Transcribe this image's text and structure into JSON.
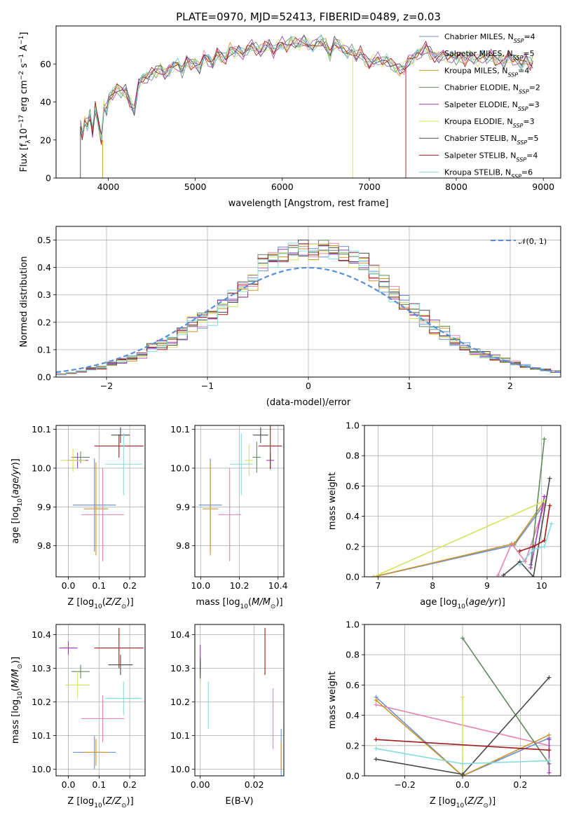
{
  "colors": [
    "#6b8fd6",
    "#e685b0",
    "#c9962a",
    "#5f8a5e",
    "#9b3cb5",
    "#d6e261",
    "#4a4a4a",
    "#a11d1d",
    "#86dcdc"
  ],
  "chart_data": [
    {
      "id": "spectrum",
      "type": "line",
      "title": "PLATE=0970, MJD=52413, FIBERID=0489, z=0.03",
      "xlabel": "wavelength [Angstrom, rest frame]",
      "ylabel": "Flux [f_λ10^-17 erg cm^-2 s^-1 A^-1]",
      "xlim": [
        3400,
        9200
      ],
      "ylim": [
        0,
        80
      ],
      "xticks": [
        4000,
        5000,
        6000,
        7000,
        8000,
        9000
      ],
      "yticks": [
        0,
        20,
        40,
        60
      ],
      "grid": false,
      "legend_position": "top-right",
      "legend": [
        {
          "label": "Chabrier MILES, N",
          "sub": "SSP",
          "tail": "=4"
        },
        {
          "label": "Salpeter MILES, N",
          "sub": "SSP",
          "tail": "=5"
        },
        {
          "label": "Kroupa MILES, N",
          "sub": "SSP",
          "tail": "=4"
        },
        {
          "label": "Chabrier ELODIE, N",
          "sub": "SSP",
          "tail": "=2"
        },
        {
          "label": "Salpeter ELODIE, N",
          "sub": "SSP",
          "tail": "=3"
        },
        {
          "label": "Kroupa ELODIE, N",
          "sub": "SSP",
          "tail": "=3"
        },
        {
          "label": "Chabrier STELIB, N",
          "sub": "SSP",
          "tail": "=5"
        },
        {
          "label": "Salpeter STELIB, N",
          "sub": "SSP",
          "tail": "=4"
        },
        {
          "label": "Kroupa STELIB, N",
          "sub": "SSP",
          "tail": "=6"
        }
      ],
      "x": [
        3680,
        3700,
        3730,
        3760,
        3790,
        3820,
        3850,
        3880,
        3920,
        3950,
        3980,
        4010,
        4050,
        4100,
        4150,
        4200,
        4250,
        4300,
        4350,
        4400,
        4450,
        4500,
        4550,
        4600,
        4650,
        4700,
        4750,
        4800,
        4850,
        4900,
        4950,
        5000,
        5050,
        5100,
        5150,
        5200,
        5250,
        5300,
        5350,
        5400,
        5450,
        5500,
        5550,
        5600,
        5650,
        5700,
        5750,
        5800,
        5850,
        5900,
        5950,
        6000,
        6050,
        6100,
        6150,
        6200,
        6250,
        6300,
        6350,
        6400,
        6450,
        6500,
        6550,
        6600,
        6650,
        6700,
        6750,
        6800,
        6850,
        6900,
        6950,
        7000,
        7050,
        7100,
        7150,
        7200,
        7250,
        7300,
        7350,
        7400,
        7450,
        7500,
        7550,
        7600,
        7650,
        7700,
        7750,
        7800,
        7850,
        7900,
        7950,
        8000,
        8050,
        8100,
        8150,
        8200,
        8250,
        8300,
        8350,
        8400,
        8450,
        8500,
        8550,
        8600,
        8650,
        8700,
        8750,
        8800,
        8850,
        8880
      ],
      "y": [
        27,
        22,
        30,
        28,
        33,
        24,
        37,
        30,
        20,
        38,
        36,
        42,
        44,
        47,
        45,
        46,
        40,
        36,
        50,
        52,
        53,
        55,
        56,
        58,
        55,
        57,
        59,
        60,
        56,
        62,
        60,
        61,
        58,
        64,
        62,
        60,
        66,
        64,
        63,
        68,
        66,
        67,
        65,
        68,
        70,
        68,
        67,
        69,
        70,
        66,
        70,
        71,
        69,
        72,
        71,
        70,
        72,
        70,
        69,
        71,
        72,
        70,
        64,
        71,
        70,
        68,
        66,
        67,
        64,
        66,
        62,
        60,
        62,
        63,
        61,
        62,
        60,
        58,
        57,
        58,
        62,
        63,
        65,
        66,
        69,
        66,
        64,
        64,
        65,
        63,
        64,
        63,
        64,
        62,
        65,
        63,
        62,
        64,
        63,
        65,
        62,
        63,
        61,
        64,
        62,
        62,
        60,
        63,
        60,
        61
      ],
      "dropouts": [
        [
          3680,
          0
        ],
        [
          3935,
          0
        ],
        [
          6810,
          0
        ],
        [
          7420,
          0
        ]
      ]
    },
    {
      "id": "residuals",
      "type": "line",
      "xlabel": "(data-model)/error",
      "ylabel": "Normed distribution",
      "xlim": [
        -2.5,
        2.5
      ],
      "ylim": [
        0,
        0.55
      ],
      "xticks": [
        -2,
        -1,
        0,
        1,
        2
      ],
      "yticks": [
        0.0,
        0.1,
        0.2,
        0.3,
        0.4,
        0.5
      ],
      "grid": true,
      "legend_position": "top-right",
      "reference_label": "𝒩(0, 1)",
      "bin_edges": [
        -2.5,
        -2.4,
        -2.3,
        -2.2,
        -2.1,
        -2.0,
        -1.9,
        -1.8,
        -1.7,
        -1.6,
        -1.5,
        -1.4,
        -1.3,
        -1.2,
        -1.1,
        -1.0,
        -0.9,
        -0.8,
        -0.7,
        -0.6,
        -0.5,
        -0.4,
        -0.3,
        -0.2,
        -0.1,
        0.0,
        0.1,
        0.2,
        0.3,
        0.4,
        0.5,
        0.6,
        0.7,
        0.8,
        0.9,
        1.0,
        1.1,
        1.2,
        1.3,
        1.4,
        1.5,
        1.6,
        1.7,
        1.8,
        1.9,
        2.0,
        2.1,
        2.2,
        2.3,
        2.4,
        2.5
      ],
      "hist_base": [
        0.01,
        0.015,
        0.02,
        0.03,
        0.035,
        0.05,
        0.06,
        0.07,
        0.08,
        0.11,
        0.12,
        0.13,
        0.16,
        0.2,
        0.21,
        0.22,
        0.26,
        0.29,
        0.32,
        0.35,
        0.42,
        0.43,
        0.45,
        0.46,
        0.47,
        0.46,
        0.47,
        0.46,
        0.45,
        0.43,
        0.42,
        0.38,
        0.34,
        0.3,
        0.27,
        0.24,
        0.21,
        0.18,
        0.16,
        0.13,
        0.11,
        0.09,
        0.08,
        0.07,
        0.06,
        0.05,
        0.04,
        0.03,
        0.025,
        0.02
      ]
    },
    {
      "id": "age_vs_Z",
      "type": "scatter",
      "xlabel": "Z [log10(Z/Z⊙)]",
      "ylabel": "age [log10(age/yr)]",
      "xlim": [
        -0.04,
        0.25
      ],
      "ylim": [
        9.72,
        10.11
      ],
      "xticks": [
        0.0,
        0.1,
        0.2
      ],
      "yticks": [
        9.8,
        9.9,
        10.0,
        10.1
      ],
      "grid": true,
      "points": [
        {
          "x": 0.085,
          "y": 9.905,
          "xerr": 0.07,
          "yerr": 0.12
        },
        {
          "x": 0.112,
          "y": 9.88,
          "xerr": 0.07,
          "yerr": 0.12
        },
        {
          "x": 0.09,
          "y": 9.895,
          "xerr": 0.04,
          "yerr": 0.12
        },
        {
          "x": 0.04,
          "y": 10.028,
          "xerr": 0.03,
          "yerr": 0.015
        },
        {
          "x": 0.03,
          "y": 10.02,
          "xerr": 0.035,
          "yerr": 0.02
        },
        {
          "x": 0.015,
          "y": 10.02,
          "xerr": 0.04,
          "yerr": 0.03
        },
        {
          "x": 0.17,
          "y": 10.085,
          "xerr": 0.03,
          "yerr": 0.02
        },
        {
          "x": 0.165,
          "y": 10.057,
          "xerr": 0.08,
          "yerr": 0.03
        },
        {
          "x": 0.18,
          "y": 10.01,
          "xerr": 0.06,
          "yerr": 0.08
        }
      ]
    },
    {
      "id": "age_vs_mass",
      "type": "scatter",
      "xlabel": "mass [log10(M/M⊙)]",
      "ylabel": "",
      "xlim": [
        9.97,
        10.43
      ],
      "ylim": [
        9.72,
        10.11
      ],
      "xticks": [
        10.0,
        10.2,
        10.4
      ],
      "yticks": [
        9.8,
        9.9,
        10.0,
        10.1
      ],
      "grid": true,
      "points": [
        {
          "x": 10.05,
          "y": 9.905,
          "xerr": 0.06,
          "yerr": 0.12
        },
        {
          "x": 10.15,
          "y": 9.88,
          "xerr": 0.06,
          "yerr": 0.12
        },
        {
          "x": 10.05,
          "y": 9.895,
          "xerr": 0.04,
          "yerr": 0.12
        },
        {
          "x": 10.29,
          "y": 10.028,
          "xerr": 0.02,
          "yerr": 0.04
        },
        {
          "x": 10.36,
          "y": 10.02,
          "xerr": 0.02,
          "yerr": 0.02
        },
        {
          "x": 10.25,
          "y": 10.02,
          "xerr": 0.02,
          "yerr": 0.04
        },
        {
          "x": 10.31,
          "y": 10.085,
          "xerr": 0.04,
          "yerr": 0.02
        },
        {
          "x": 10.36,
          "y": 10.057,
          "xerr": 0.06,
          "yerr": 0.06
        },
        {
          "x": 10.21,
          "y": 10.01,
          "xerr": 0.06,
          "yerr": 0.08
        }
      ]
    },
    {
      "id": "weight_vs_age",
      "type": "line",
      "xlabel": "age [log10(age/yr)]",
      "ylabel": "mass weight",
      "xlim": [
        6.75,
        10.35
      ],
      "ylim": [
        0,
        1
      ],
      "xticks": [
        7,
        8,
        9,
        10
      ],
      "yticks": [
        0.0,
        0.2,
        0.4,
        0.6,
        0.8,
        1.0
      ],
      "grid": true,
      "series": [
        {
          "x": [
            6.92,
            9.5,
            10.05
          ],
          "y": [
            0.0,
            0.21,
            0.48
          ]
        },
        {
          "x": [
            9.2,
            9.45,
            9.7,
            10.05
          ],
          "y": [
            0.01,
            0.22,
            0.1,
            0.47
          ]
        },
        {
          "x": [
            6.92,
            9.5,
            10.05
          ],
          "y": [
            0.0,
            0.22,
            0.5
          ]
        },
        {
          "x": [
            9.8,
            10.05
          ],
          "y": [
            0.08,
            0.91
          ]
        },
        {
          "x": [
            9.8,
            10.05
          ],
          "y": [
            0.06,
            0.53
          ]
        },
        {
          "x": [
            6.92,
            10.05
          ],
          "y": [
            0.0,
            0.5
          ]
        },
        {
          "x": [
            9.3,
            9.6,
            9.85,
            10.15
          ],
          "y": [
            0.01,
            0.1,
            0.0,
            0.65
          ]
        },
        {
          "x": [
            9.6,
            9.85,
            10.05,
            10.15
          ],
          "y": [
            0.17,
            0.2,
            0.24,
            0.47
          ]
        },
        {
          "x": [
            9.6,
            9.85,
            10.05,
            10.18
          ],
          "y": [
            0.08,
            0.18,
            0.2,
            0.35
          ]
        }
      ]
    },
    {
      "id": "mass_vs_Z",
      "type": "scatter",
      "xlabel": "Z [log10(Z/Z⊙)]",
      "ylabel": "mass [log10(M/M⊙)]",
      "xlim": [
        -0.04,
        0.25
      ],
      "ylim": [
        9.98,
        10.43
      ],
      "xticks": [
        0.0,
        0.1,
        0.2
      ],
      "yticks": [
        10.0,
        10.1,
        10.2,
        10.3,
        10.4
      ],
      "grid": true,
      "points": [
        {
          "x": 0.085,
          "y": 10.05,
          "xerr": 0.07,
          "yerr": 0.05
        },
        {
          "x": 0.112,
          "y": 10.15,
          "xerr": 0.07,
          "yerr": 0.07
        },
        {
          "x": 0.09,
          "y": 10.05,
          "xerr": 0.04,
          "yerr": 0.04
        },
        {
          "x": 0.04,
          "y": 10.29,
          "xerr": 0.03,
          "yerr": 0.02
        },
        {
          "x": 0.0,
          "y": 10.36,
          "xerr": 0.03,
          "yerr": 0.02
        },
        {
          "x": 0.03,
          "y": 10.25,
          "xerr": 0.04,
          "yerr": 0.04
        },
        {
          "x": 0.17,
          "y": 10.31,
          "xerr": 0.04,
          "yerr": 0.03
        },
        {
          "x": 0.165,
          "y": 10.36,
          "xerr": 0.08,
          "yerr": 0.06
        },
        {
          "x": 0.18,
          "y": 10.21,
          "xerr": 0.06,
          "yerr": 0.05
        }
      ]
    },
    {
      "id": "mass_vs_EBV",
      "type": "scatter",
      "xlabel": "E(B-V)",
      "ylabel": "",
      "xlim": [
        -0.002,
        0.031
      ],
      "ylim": [
        9.98,
        10.43
      ],
      "xticks": [
        0.0,
        0.02
      ],
      "yticks": [
        10.0,
        10.1,
        10.2,
        10.3,
        10.4
      ],
      "grid": true,
      "points": [
        {
          "x": 0.03,
          "y": 10.05,
          "xerr": 0,
          "yerr": 0.07
        },
        {
          "x": 0.027,
          "y": 10.15,
          "xerr": 0,
          "yerr": 0.09
        },
        {
          "x": 0.03,
          "y": 10.04,
          "xerr": 0,
          "yerr": 0.04
        },
        {
          "x": 0.0,
          "y": 10.29,
          "xerr": 0,
          "yerr": 0.03
        },
        {
          "x": 0.0,
          "y": 10.33,
          "xerr": 0,
          "yerr": 0.04
        },
        {
          "x": 0.0,
          "y": 10.25,
          "xerr": 0,
          "yerr": 0.03
        },
        {
          "x": 0.0,
          "y": 10.3,
          "xerr": 0,
          "yerr": 0.03
        },
        {
          "x": 0.024,
          "y": 10.35,
          "xerr": 0,
          "yerr": 0.07
        },
        {
          "x": 0.003,
          "y": 10.19,
          "xerr": 0,
          "yerr": 0.07
        }
      ]
    },
    {
      "id": "weight_vs_Z",
      "type": "line",
      "xlabel": "Z [log10(Z/Z⊙)]",
      "ylabel": "mass weight",
      "xlim": [
        -0.34,
        0.34
      ],
      "ylim": [
        0,
        1
      ],
      "xticks": [
        -0.2,
        0.0,
        0.2
      ],
      "yticks": [
        0.0,
        0.2,
        0.4,
        0.6,
        0.8,
        1.0
      ],
      "grid": true,
      "series": [
        {
          "x": [
            -0.3,
            0.0,
            0.3
          ],
          "y": [
            0.52,
            0.0,
            0.25
          ]
        },
        {
          "x": [
            -0.3,
            0.3
          ],
          "y": [
            0.47,
            0.2
          ]
        },
        {
          "x": [
            -0.3,
            0.0,
            0.3
          ],
          "y": [
            0.5,
            0.0,
            0.27
          ]
        },
        {
          "x": [
            0.0,
            0.3
          ],
          "y": [
            0.91,
            0.08
          ]
        },
        {
          "x": [
            0.3,
            0.3
          ],
          "y": [
            0.02,
            0.24
          ]
        },
        {
          "x": [
            0.0,
            0.0
          ],
          "y": [
            0.0,
            0.52
          ]
        },
        {
          "x": [
            -0.3,
            0.0,
            0.3
          ],
          "y": [
            0.11,
            0.01,
            0.65
          ]
        },
        {
          "x": [
            -0.3,
            0.3
          ],
          "y": [
            0.24,
            0.17
          ]
        },
        {
          "x": [
            -0.3,
            0.0,
            0.3
          ],
          "y": [
            0.18,
            0.08,
            0.1
          ]
        }
      ]
    }
  ]
}
